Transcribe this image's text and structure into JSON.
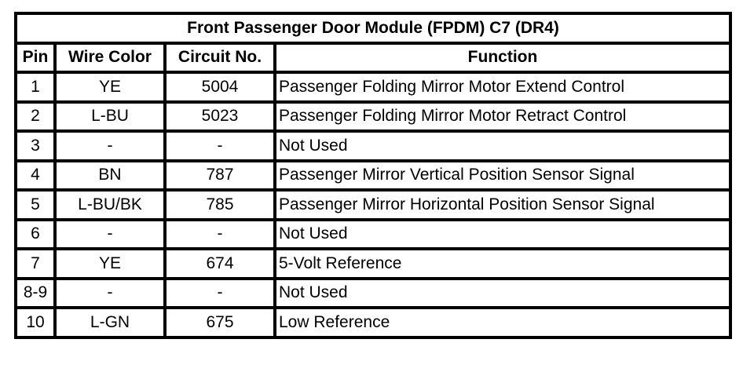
{
  "title": "Front Passenger Door Module (FPDM) C7 (DR4)",
  "headers": [
    "Pin",
    "Wire Color",
    "Circuit No.",
    "Function"
  ],
  "rows": [
    [
      "1",
      "YE",
      "5004",
      "Passenger Folding Mirror Motor Extend Control"
    ],
    [
      "2",
      "L-BU",
      "5023",
      "Passenger Folding Mirror Motor Retract Control"
    ],
    [
      "3",
      "-",
      "-",
      "Not Used"
    ],
    [
      "4",
      "BN",
      "787",
      "Passenger Mirror Vertical Position Sensor Signal"
    ],
    [
      "5",
      "L-BU/BK",
      "785",
      "Passenger Mirror Horizontal Position Sensor Signal"
    ],
    [
      "6",
      "-",
      "-",
      "Not Used"
    ],
    [
      "7",
      "YE",
      "674",
      "5-Volt Reference"
    ],
    [
      "8-9",
      "-",
      "-",
      "Not Used"
    ],
    [
      "10",
      "L-GN",
      "675",
      "Low Reference"
    ]
  ]
}
